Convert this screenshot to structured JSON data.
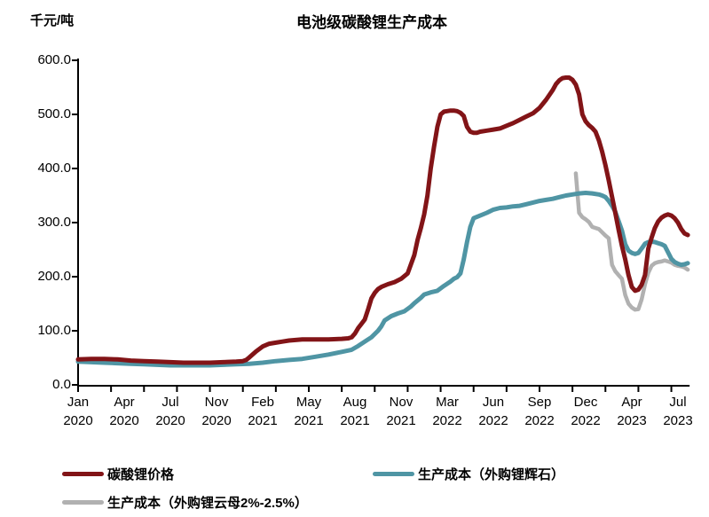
{
  "header": {
    "unit_label": "千元/吨",
    "title": "电池级碳酸锂生产成本"
  },
  "legend": {
    "items": [
      {
        "label": "碳酸锂价格",
        "color": "#821417"
      },
      {
        "label": "生产成本（外购锂辉石）",
        "color": "#4f95a4"
      },
      {
        "label": "生产成本（外购锂云母2%-2.5%）",
        "color": "#b1b1b1"
      }
    ]
  },
  "chart_data": {
    "type": "line",
    "title": "电池级碳酸锂生产成本",
    "ylabel": "千元/吨",
    "xlabel": "",
    "grid": false,
    "legend_position": "bottom",
    "ylim": [
      0,
      600
    ],
    "ytick_values": [
      0,
      100,
      200,
      300,
      400,
      500,
      600
    ],
    "ytick_labels": [
      "0.0",
      "100.0",
      "200.0",
      "300.0",
      "400.0",
      "500.0",
      "600.0"
    ],
    "x_unit": "weeks since Jan 2020",
    "xlim": [
      0,
      185
    ],
    "x_major_tick_weeks": [
      0,
      14,
      28,
      42,
      56,
      70,
      84,
      98,
      112,
      126,
      140,
      154,
      168,
      182
    ],
    "xtick_labels": [
      {
        "line1": "Jan",
        "line2": "2020"
      },
      {
        "line1": "Apr",
        "line2": "2020"
      },
      {
        "line1": "Jul",
        "line2": "2020"
      },
      {
        "line1": "Nov",
        "line2": "2020"
      },
      {
        "line1": "Feb",
        "line2": "2021"
      },
      {
        "line1": "May",
        "line2": "2021"
      },
      {
        "line1": "Aug",
        "line2": "2021"
      },
      {
        "line1": "Nov",
        "line2": "2021"
      },
      {
        "line1": "Mar",
        "line2": "2022"
      },
      {
        "line1": "Jun",
        "line2": "2022"
      },
      {
        "line1": "Sep",
        "line2": "2022"
      },
      {
        "line1": "Dec",
        "line2": "2022"
      },
      {
        "line1": "Apr",
        "line2": "2023"
      },
      {
        "line1": "Jul",
        "line2": "2023"
      }
    ],
    "minor_tick_interval_weeks": 10,
    "series": [
      {
        "name": "碳酸锂价格",
        "color": "#821417",
        "stroke_width": 5,
        "points": [
          [
            0,
            47
          ],
          [
            4,
            48
          ],
          [
            8,
            48
          ],
          [
            12,
            47
          ],
          [
            16,
            45
          ],
          [
            20,
            44
          ],
          [
            24,
            43
          ],
          [
            28,
            42
          ],
          [
            32,
            41
          ],
          [
            36,
            41
          ],
          [
            40,
            41
          ],
          [
            44,
            42
          ],
          [
            48,
            43
          ],
          [
            50,
            44
          ],
          [
            51,
            46
          ],
          [
            52,
            51
          ],
          [
            54,
            62
          ],
          [
            56,
            71
          ],
          [
            58,
            76
          ],
          [
            60,
            78
          ],
          [
            62,
            80
          ],
          [
            64,
            82
          ],
          [
            66,
            83
          ],
          [
            68,
            84
          ],
          [
            72,
            84
          ],
          [
            76,
            84
          ],
          [
            80,
            85
          ],
          [
            82,
            86
          ],
          [
            83,
            88
          ],
          [
            84,
            95
          ],
          [
            85,
            105
          ],
          [
            86,
            113
          ],
          [
            87,
            121
          ],
          [
            88,
            140
          ],
          [
            89,
            160
          ],
          [
            90,
            170
          ],
          [
            91,
            177
          ],
          [
            92,
            181
          ],
          [
            94,
            186
          ],
          [
            96,
            190
          ],
          [
            98,
            196
          ],
          [
            100,
            206
          ],
          [
            102,
            240
          ],
          [
            103,
            268
          ],
          [
            104,
            290
          ],
          [
            105,
            315
          ],
          [
            106,
            350
          ],
          [
            107,
            400
          ],
          [
            108,
            440
          ],
          [
            109,
            477
          ],
          [
            110,
            500
          ],
          [
            111,
            505
          ],
          [
            112,
            506
          ],
          [
            113,
            507
          ],
          [
            114,
            507
          ],
          [
            115,
            506
          ],
          [
            116,
            503
          ],
          [
            117,
            497
          ],
          [
            118,
            477
          ],
          [
            119,
            468
          ],
          [
            120,
            466
          ],
          [
            121,
            466
          ],
          [
            122,
            468
          ],
          [
            124,
            470
          ],
          [
            126,
            472
          ],
          [
            128,
            474
          ],
          [
            130,
            479
          ],
          [
            132,
            484
          ],
          [
            134,
            490
          ],
          [
            136,
            496
          ],
          [
            138,
            502
          ],
          [
            140,
            512
          ],
          [
            142,
            527
          ],
          [
            144,
            545
          ],
          [
            145,
            556
          ],
          [
            146,
            563
          ],
          [
            147,
            567
          ],
          [
            148,
            568
          ],
          [
            149,
            568
          ],
          [
            150,
            564
          ],
          [
            151,
            555
          ],
          [
            152,
            537
          ],
          [
            153,
            500
          ],
          [
            154,
            487
          ],
          [
            155,
            480
          ],
          [
            156,
            475
          ],
          [
            157,
            468
          ],
          [
            158,
            452
          ],
          [
            159,
            431
          ],
          [
            160,
            406
          ],
          [
            161,
            378
          ],
          [
            162,
            348
          ],
          [
            163,
            318
          ],
          [
            164,
            287
          ],
          [
            165,
            257
          ],
          [
            166,
            232
          ],
          [
            167,
            203
          ],
          [
            168,
            181
          ],
          [
            169,
            174
          ],
          [
            170,
            176
          ],
          [
            171,
            185
          ],
          [
            172,
            203
          ],
          [
            173,
            252
          ],
          [
            174,
            272
          ],
          [
            175,
            290
          ],
          [
            176,
            302
          ],
          [
            177,
            309
          ],
          [
            178,
            313
          ],
          [
            179,
            315
          ],
          [
            180,
            313
          ],
          [
            181,
            308
          ],
          [
            182,
            300
          ],
          [
            183,
            288
          ],
          [
            184,
            280
          ],
          [
            185,
            277
          ]
        ]
      },
      {
        "name": "生产成本（外购锂辉石）",
        "color": "#4f95a4",
        "stroke_width": 5,
        "points": [
          [
            0,
            43
          ],
          [
            4,
            42
          ],
          [
            8,
            41
          ],
          [
            12,
            40
          ],
          [
            16,
            39
          ],
          [
            20,
            38
          ],
          [
            24,
            37
          ],
          [
            28,
            36
          ],
          [
            32,
            36
          ],
          [
            36,
            36
          ],
          [
            40,
            36
          ],
          [
            44,
            37
          ],
          [
            48,
            38
          ],
          [
            52,
            39
          ],
          [
            56,
            41
          ],
          [
            60,
            44
          ],
          [
            64,
            46
          ],
          [
            68,
            48
          ],
          [
            72,
            52
          ],
          [
            76,
            56
          ],
          [
            80,
            61
          ],
          [
            83,
            65
          ],
          [
            85,
            72
          ],
          [
            87,
            80
          ],
          [
            89,
            88
          ],
          [
            91,
            100
          ],
          [
            92,
            108
          ],
          [
            93,
            119
          ],
          [
            95,
            127
          ],
          [
            97,
            132
          ],
          [
            99,
            136
          ],
          [
            101,
            145
          ],
          [
            102,
            151
          ],
          [
            104,
            161
          ],
          [
            105,
            167
          ],
          [
            107,
            171
          ],
          [
            109,
            174
          ],
          [
            111,
            183
          ],
          [
            113,
            191
          ],
          [
            114,
            196
          ],
          [
            115,
            199
          ],
          [
            116,
            206
          ],
          [
            117,
            232
          ],
          [
            118,
            264
          ],
          [
            119,
            292
          ],
          [
            120,
            308
          ],
          [
            122,
            313
          ],
          [
            124,
            318
          ],
          [
            126,
            324
          ],
          [
            128,
            327
          ],
          [
            130,
            328
          ],
          [
            132,
            330
          ],
          [
            134,
            331
          ],
          [
            136,
            334
          ],
          [
            138,
            337
          ],
          [
            140,
            340
          ],
          [
            142,
            342
          ],
          [
            144,
            344
          ],
          [
            146,
            347
          ],
          [
            148,
            350
          ],
          [
            150,
            352
          ],
          [
            152,
            354
          ],
          [
            154,
            355
          ],
          [
            156,
            354
          ],
          [
            158,
            352
          ],
          [
            159,
            350
          ],
          [
            160,
            347
          ],
          [
            161,
            340
          ],
          [
            162,
            331
          ],
          [
            163,
            320
          ],
          [
            164,
            303
          ],
          [
            165,
            285
          ],
          [
            166,
            260
          ],
          [
            167,
            248
          ],
          [
            168,
            244
          ],
          [
            169,
            242
          ],
          [
            170,
            244
          ],
          [
            171,
            252
          ],
          [
            172,
            261
          ],
          [
            173,
            264
          ],
          [
            174,
            265
          ],
          [
            175,
            264
          ],
          [
            176,
            262
          ],
          [
            177,
            260
          ],
          [
            178,
            257
          ],
          [
            179,
            245
          ],
          [
            180,
            233
          ],
          [
            181,
            227
          ],
          [
            182,
            224
          ],
          [
            183,
            222
          ],
          [
            184,
            223
          ],
          [
            185,
            225
          ]
        ]
      },
      {
        "name": "生产成本（外购锂云母2%-2.5%）",
        "color": "#b1b1b1",
        "stroke_width": 4.5,
        "points": [
          [
            151,
            391
          ],
          [
            152,
            318
          ],
          [
            153,
            310
          ],
          [
            154,
            306
          ],
          [
            155,
            301
          ],
          [
            156,
            292
          ],
          [
            158,
            288
          ],
          [
            160,
            276
          ],
          [
            161,
            271
          ],
          [
            162,
            222
          ],
          [
            163,
            210
          ],
          [
            164,
            203
          ],
          [
            165,
            196
          ],
          [
            166,
            166
          ],
          [
            167,
            150
          ],
          [
            168,
            143
          ],
          [
            169,
            139
          ],
          [
            170,
            140
          ],
          [
            171,
            158
          ],
          [
            172,
            186
          ],
          [
            173,
            207
          ],
          [
            174,
            220
          ],
          [
            175,
            225
          ],
          [
            176,
            227
          ],
          [
            177,
            228
          ],
          [
            178,
            230
          ],
          [
            179,
            228
          ],
          [
            180,
            226
          ],
          [
            181,
            222
          ],
          [
            182,
            220
          ],
          [
            183,
            219
          ],
          [
            184,
            217
          ],
          [
            185,
            213
          ]
        ]
      }
    ]
  }
}
